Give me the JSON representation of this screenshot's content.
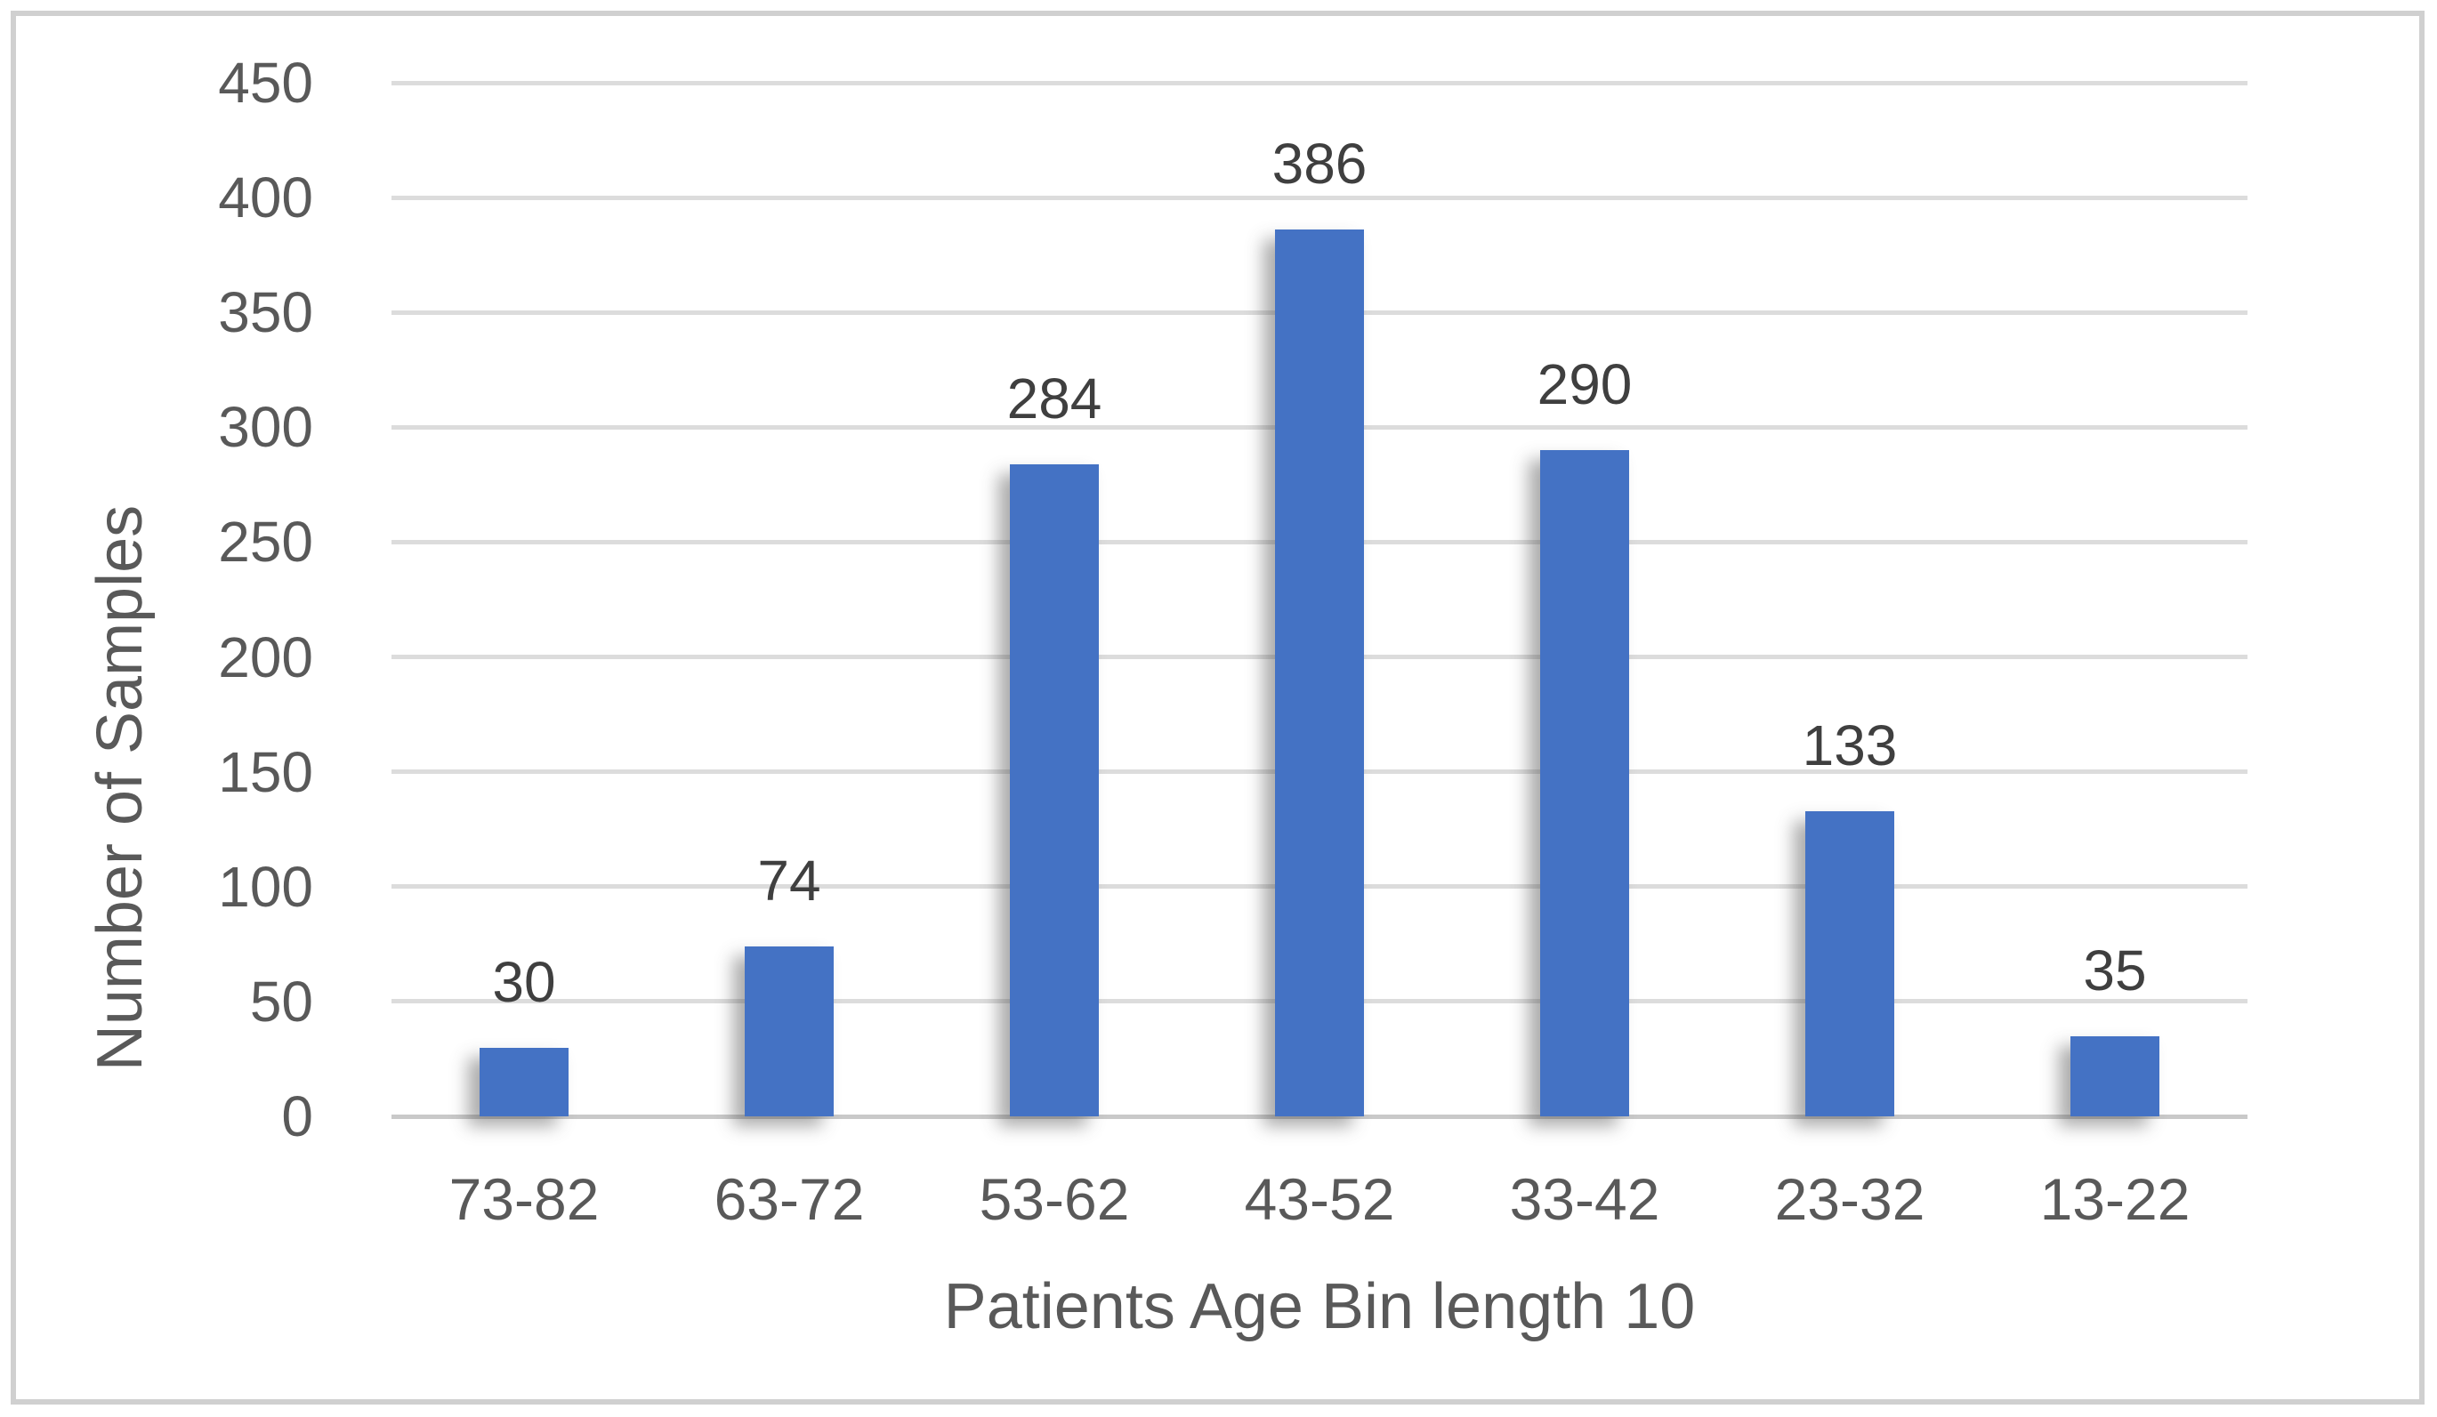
{
  "chart_data": {
    "type": "bar",
    "title": "",
    "categories": [
      "73-82",
      "63-72",
      "53-62",
      "43-52",
      "33-42",
      "23-32",
      "13-22"
    ],
    "values": [
      30,
      74,
      284,
      386,
      290,
      133,
      35
    ],
    "xlabel": "Patients Age Bin length 10",
    "ylabel": "Number of Samples",
    "ylim": [
      0,
      450
    ],
    "yticks": [
      0,
      50,
      100,
      150,
      200,
      250,
      300,
      350,
      400,
      450
    ],
    "grid": true,
    "legend": false,
    "bar_color": "#4472C4",
    "gridline_color": "#dcdcdc",
    "axis_line_color": "#c9c9c9",
    "tick_text_color": "#595959",
    "value_label_color": "#3f3f3f",
    "frame_border_color": "#d0d0d0"
  }
}
